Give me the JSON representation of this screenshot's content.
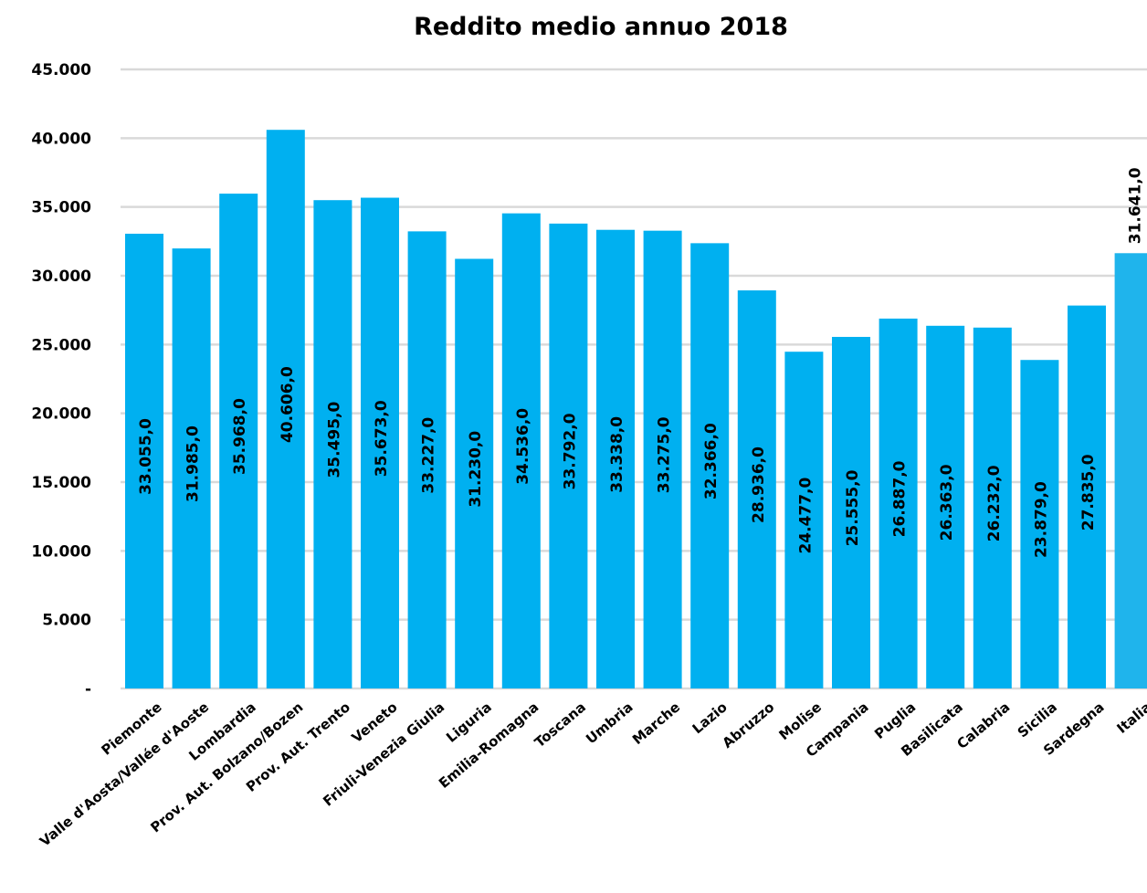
{
  "chart_data": {
    "type": "bar",
    "title": "Reddito medio annuo 2018",
    "xlabel": "",
    "ylabel": "",
    "ylim": [
      0,
      45000
    ],
    "yticks": [
      0,
      5000,
      10000,
      15000,
      20000,
      25000,
      30000,
      35000,
      40000,
      45000
    ],
    "ytick_labels": [
      "-",
      "5.000",
      "10.000",
      "15.000",
      "20.000",
      "25.000",
      "30.000",
      "35.000",
      "40.000",
      "45.000"
    ],
    "grid": true,
    "legend": "none",
    "categories": [
      "Piemonte",
      "Valle d'Aosta/Vallée d'Aoste",
      "Lombardia",
      "Prov. Aut. Bolzano/Bozen",
      "Prov. Aut. Trento",
      "Veneto",
      "Friuli-Venezia Giulia",
      "Liguria",
      "Emilia-Romagna",
      "Toscana",
      "Umbria",
      "Marche",
      "Lazio",
      "Abruzzo",
      "Molise",
      "Campania",
      "Puglia",
      "Basilicata",
      "Calabria",
      "Sicilia",
      "Sardegna",
      "Italia"
    ],
    "values": [
      33055,
      31985,
      35968,
      40606,
      35495,
      35673,
      33227,
      31230,
      34536,
      33792,
      33338,
      33275,
      32366,
      28936,
      24477,
      25555,
      26887,
      26363,
      26232,
      23879,
      27835,
      31641
    ],
    "data_labels": [
      "33.055,0",
      "31.985,0",
      "35.968,0",
      "40.606,0",
      "35.495,0",
      "35.673,0",
      "33.227,0",
      "31.230,0",
      "34.536,0",
      "33.792,0",
      "33.338,0",
      "33.275,0",
      "32.366,0",
      "28.936,0",
      "24.477,0",
      "25.555,0",
      "26.887,0",
      "26.363,0",
      "26.232,0",
      "23.879,0",
      "27.835,0",
      "31.641,0"
    ],
    "colors": {
      "bar": "#00B0F0",
      "highlight_bar": "#1FB4EC",
      "grid": "#D9D9D9",
      "text": "#000000"
    }
  }
}
